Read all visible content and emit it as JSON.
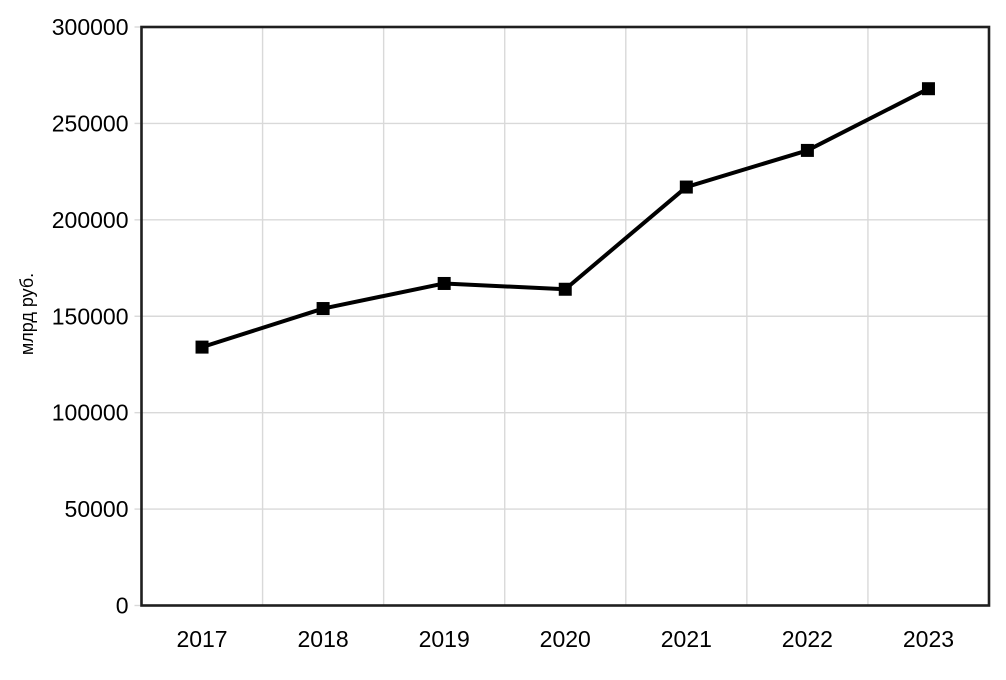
{
  "chart_data": {
    "type": "line",
    "title": "",
    "categories": [
      "2017",
      "2018",
      "2019",
      "2020",
      "2021",
      "2022",
      "2023"
    ],
    "values": [
      134000,
      154000,
      167000,
      164000,
      217000,
      236000,
      268000
    ],
    "xlabel": "",
    "ylabel": "млрд руб.",
    "ylim": [
      0,
      300000
    ],
    "ytick_step": 50000,
    "ytick_labels": [
      "0",
      "50000",
      "100000",
      "150000",
      "200000",
      "250000",
      "300000"
    ],
    "grid": true,
    "legend": "none",
    "marker": "square",
    "colors": {
      "series": "#000000",
      "marker": "#000000",
      "gridline": "#d9d9d9",
      "plot_border": "#1f1f1f",
      "text": "#000000",
      "background": "#ffffff"
    }
  }
}
